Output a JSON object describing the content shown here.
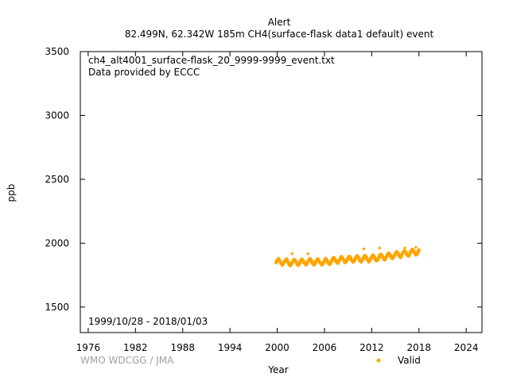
{
  "chart_data": {
    "type": "scatter",
    "title": "Alert",
    "subtitle": "82.499N, 62.342W 185m    CH4(surface-flask data1 default) event",
    "annotations": {
      "filename": "ch4_alt4001_surface-flask_20_9999-9999_event.txt",
      "provider": "Data provided by ECCC",
      "date_range": "1999/10/28 - 2018/01/03"
    },
    "credit": "WMO WDCGG / JMA",
    "xlabel": "Year",
    "ylabel": "ppb",
    "xlim": [
      1975,
      2026
    ],
    "ylim": [
      1300,
      3500
    ],
    "x_ticks": [
      1976,
      1982,
      1988,
      1994,
      2000,
      2006,
      2012,
      2018,
      2024
    ],
    "y_ticks": [
      1500,
      2000,
      2500,
      3000,
      3500
    ],
    "grid": false,
    "legend": {
      "position": "bottom-right",
      "entries": [
        "Valid"
      ]
    },
    "series": [
      {
        "name": "Valid",
        "color": "#ffa500",
        "marker": "diamond",
        "x_start": 1999.83,
        "x_end": 2018.01,
        "monthly_means": [
          {
            "year": 2000,
            "value": 1855
          },
          {
            "year": 2002,
            "value": 1848
          },
          {
            "year": 2004,
            "value": 1855
          },
          {
            "year": 2006,
            "value": 1853
          },
          {
            "year": 2008,
            "value": 1870
          },
          {
            "year": 2010,
            "value": 1877
          },
          {
            "year": 2012,
            "value": 1880
          },
          {
            "year": 2014,
            "value": 1897
          },
          {
            "year": 2016,
            "value": 1917
          },
          {
            "year": 2018,
            "value": 1935
          }
        ],
        "seasonal_amplitude": 20,
        "outliers": [
          {
            "x": 2001.9,
            "y": 1918
          },
          {
            "x": 2003.9,
            "y": 1917
          },
          {
            "x": 2011.0,
            "y": 1955
          },
          {
            "x": 2013.0,
            "y": 1962
          },
          {
            "x": 2016.2,
            "y": 1962
          },
          {
            "x": 2017.6,
            "y": 1967
          }
        ]
      }
    ]
  }
}
